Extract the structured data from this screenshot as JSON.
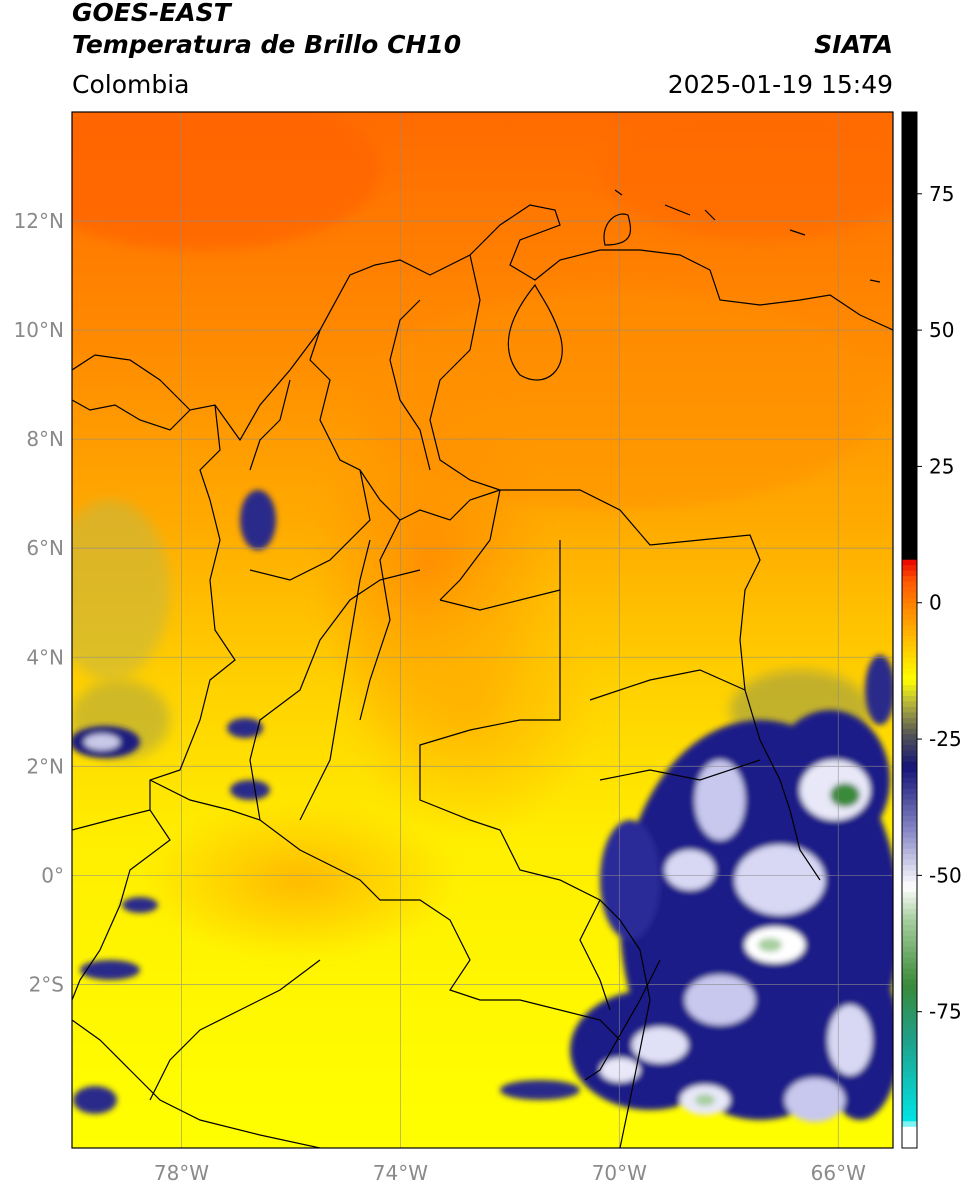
{
  "header": {
    "satellite": "GOES-EAST",
    "product": "Temperatura de Brillo CH10",
    "org": "SIATA",
    "region": "Colombia",
    "timestamp": "2025-01-19 15:49"
  },
  "map": {
    "lon_range": [
      -80.0,
      -65.0
    ],
    "lat_range": [
      -5.0,
      14.0
    ],
    "lat_ticks": [
      {
        "value": 12,
        "label": "12°N"
      },
      {
        "value": 10,
        "label": "10°N"
      },
      {
        "value": 8,
        "label": "8°N"
      },
      {
        "value": 6,
        "label": "6°N"
      },
      {
        "value": 4,
        "label": "4°N"
      },
      {
        "value": 2,
        "label": "2°N"
      },
      {
        "value": 0,
        "label": "0°"
      },
      {
        "value": -2,
        "label": "2°S"
      }
    ],
    "lon_ticks": [
      {
        "value": -78,
        "label": "78°W"
      },
      {
        "value": -74,
        "label": "74°W"
      },
      {
        "value": -70,
        "label": "70°W"
      },
      {
        "value": -66,
        "label": "66°W"
      }
    ],
    "gridlines": true
  },
  "colorbar": {
    "range": [
      -100,
      90
    ],
    "ticks": [
      {
        "value": 75,
        "label": "75"
      },
      {
        "value": 50,
        "label": "50"
      },
      {
        "value": 25,
        "label": "25"
      },
      {
        "value": 0,
        "label": "0"
      },
      {
        "value": -25,
        "label": "-25"
      },
      {
        "value": -50,
        "label": "-50"
      },
      {
        "value": -75,
        "label": "-75"
      }
    ],
    "stops": [
      {
        "value": -100,
        "color": "#ffffff"
      },
      {
        "value": -96,
        "color": "#ffffff"
      },
      {
        "value": -95,
        "color": "#00e5e5"
      },
      {
        "value": -80,
        "color": "#1fa08a"
      },
      {
        "value": -70,
        "color": "#3a8a3a"
      },
      {
        "value": -58,
        "color": "#a8cfa0"
      },
      {
        "value": -52,
        "color": "#ffffff"
      },
      {
        "value": -42,
        "color": "#8a8ac8"
      },
      {
        "value": -30,
        "color": "#141478"
      },
      {
        "value": -24,
        "color": "#555555"
      },
      {
        "value": -18,
        "color": "#bcbc3a"
      },
      {
        "value": -14,
        "color": "#ffff00"
      },
      {
        "value": -4,
        "color": "#ffa500"
      },
      {
        "value": 4,
        "color": "#ff5a00"
      },
      {
        "value": 8,
        "color": "#e80000"
      },
      {
        "value": 8.1,
        "color": "#000000"
      },
      {
        "value": 90,
        "color": "#000000"
      }
    ]
  }
}
